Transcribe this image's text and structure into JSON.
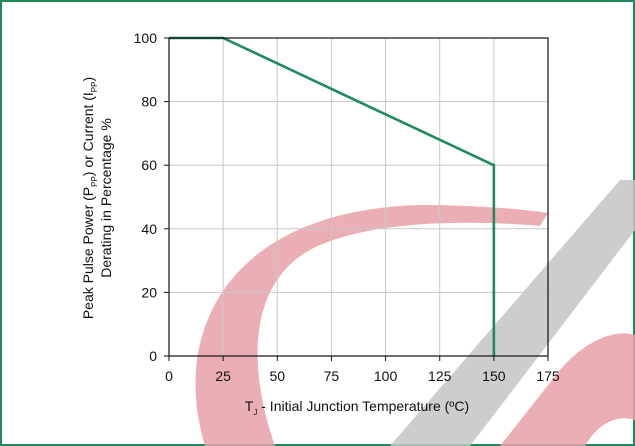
{
  "chart_data": {
    "type": "line",
    "x": [
      0,
      25,
      150,
      150
    ],
    "series": [
      {
        "values": [
          100,
          100,
          60,
          0
        ]
      }
    ],
    "xticks": [
      0,
      25,
      50,
      75,
      100,
      125,
      150,
      175
    ],
    "yticks": [
      0,
      20,
      40,
      60,
      80,
      100
    ],
    "xlim": [
      0,
      175
    ],
    "ylim": [
      0,
      100
    ],
    "grid": true,
    "xlabel": {
      "pre": "T",
      "sub": "J",
      "post": " - Initial Junction Temperature (ºC)"
    },
    "ylabel": {
      "line1_pre": "Peak Pulse Power (P",
      "line1_sub1": "PP",
      "line1_mid": ") or Current (I",
      "line1_sub2": "PP",
      "line1_post": ")",
      "line2": "Derating in Percentage %"
    }
  },
  "colors": {
    "line": "#1f8a5c",
    "frame": "#1f8a5c",
    "grid": "#c8c8c8",
    "axis": "#111111",
    "watermark_red": "#e8a0a8",
    "watermark_gray": "#c4c4c4"
  }
}
